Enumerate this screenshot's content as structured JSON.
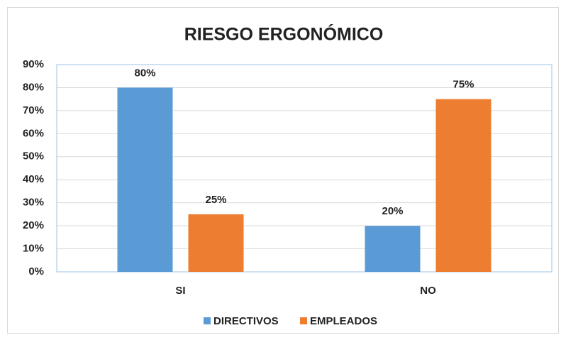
{
  "chart_data": {
    "type": "bar",
    "title": "RIESGO ERGONÓMICO",
    "categories": [
      "SI",
      "NO"
    ],
    "series": [
      {
        "name": "DIRECTIVOS",
        "color": "#5b9bd5",
        "values": [
          80,
          20
        ],
        "value_labels": [
          "80%",
          "20%"
        ]
      },
      {
        "name": "EMPLEADOS",
        "color": "#ed7d31",
        "values": [
          25,
          75
        ],
        "value_labels": [
          "25%",
          "75%"
        ]
      }
    ],
    "ylim": [
      0,
      90
    ],
    "yticks": [
      {
        "value": 0,
        "label": "0%"
      },
      {
        "value": 10,
        "label": "10%"
      },
      {
        "value": 20,
        "label": "20%"
      },
      {
        "value": 30,
        "label": "30%"
      },
      {
        "value": 40,
        "label": "40%"
      },
      {
        "value": 50,
        "label": "50%"
      },
      {
        "value": 60,
        "label": "60%"
      },
      {
        "value": 70,
        "label": "70%"
      },
      {
        "value": 80,
        "label": "80%"
      },
      {
        "value": 90,
        "label": "90%"
      }
    ],
    "grid": true,
    "legend": "bottom"
  }
}
